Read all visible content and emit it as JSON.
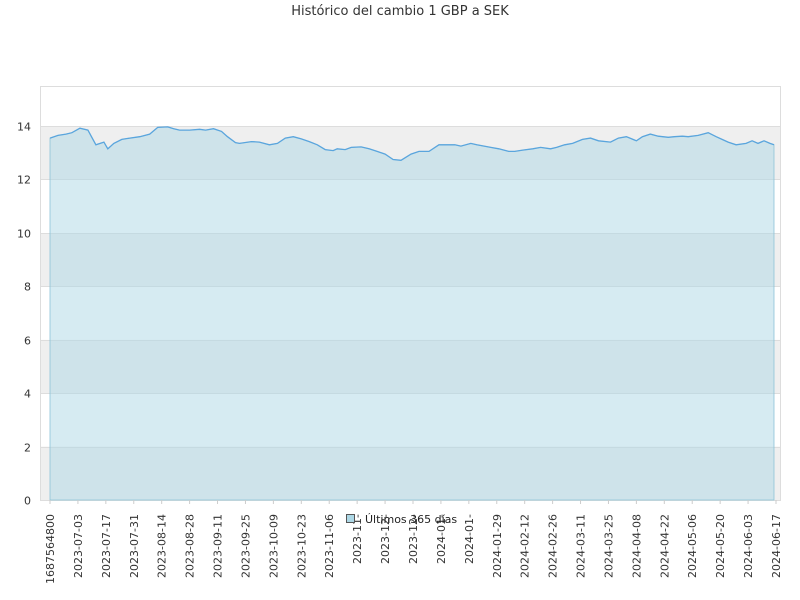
{
  "chart_data": {
    "type": "area",
    "title": "Histórico del cambio 1 GBP a SEK",
    "xlabel": "",
    "ylabel": "",
    "ylim": [
      0,
      15.5
    ],
    "yticks": [
      0,
      2,
      4,
      6,
      8,
      10,
      12,
      14
    ],
    "xtick_labels": [
      "1687564800",
      "2023-07-03",
      "2023-07-17",
      "2023-07-31",
      "2023-08-14",
      "2023-08-28",
      "2023-09-11",
      "2023-09-25",
      "2023-10-09",
      "2023-10-23",
      "2023-11-06",
      "2023-11-",
      "2023-12-",
      "2023-12-",
      "2024-01-",
      "2024-01-",
      "2024-01-29",
      "2024-02-12",
      "2024-02-26",
      "2024-03-11",
      "2024-03-25",
      "2024-04-08",
      "2024-04-22",
      "2024-05-06",
      "2024-05-20",
      "2024-06-03",
      "2024-06-17"
    ],
    "grid": true,
    "legend_position": "bottom-center",
    "series": [
      {
        "name": "Últimos 365 días",
        "color": "#5aa5dd",
        "fill": "#add8e6",
        "dates": [
          "2023-06-24",
          "2023-06-28",
          "2023-07-02",
          "2023-07-05",
          "2023-07-09",
          "2023-07-13",
          "2023-07-17",
          "2023-07-21",
          "2023-07-23",
          "2023-07-26",
          "2023-07-30",
          "2023-08-03",
          "2023-08-08",
          "2023-08-13",
          "2023-08-17",
          "2023-08-22",
          "2023-08-25",
          "2023-08-28",
          "2023-09-02",
          "2023-09-07",
          "2023-09-10",
          "2023-09-14",
          "2023-09-18",
          "2023-09-21",
          "2023-09-25",
          "2023-09-27",
          "2023-10-03",
          "2023-10-07",
          "2023-10-12",
          "2023-10-16",
          "2023-10-20",
          "2023-10-24",
          "2023-10-28",
          "2023-11-01",
          "2023-11-05",
          "2023-11-09",
          "2023-11-13",
          "2023-11-15",
          "2023-11-19",
          "2023-11-22",
          "2023-11-27",
          "2023-12-01",
          "2023-12-05",
          "2023-12-09",
          "2023-12-13",
          "2023-12-17",
          "2023-12-22",
          "2023-12-26",
          "2023-12-31",
          "2024-01-05",
          "2024-01-08",
          "2024-01-13",
          "2024-01-16",
          "2024-01-21",
          "2024-01-24",
          "2024-01-31",
          "2024-02-04",
          "2024-02-09",
          "2024-02-12",
          "2024-02-16",
          "2024-02-21",
          "2024-02-25",
          "2024-03-01",
          "2024-03-04",
          "2024-03-08",
          "2024-03-12",
          "2024-03-17",
          "2024-03-21",
          "2024-03-25",
          "2024-03-31",
          "2024-04-04",
          "2024-04-08",
          "2024-04-13",
          "2024-04-16",
          "2024-04-20",
          "2024-04-24",
          "2024-04-29",
          "2024-05-02",
          "2024-05-06",
          "2024-05-09",
          "2024-05-14",
          "2024-05-19",
          "2024-05-23",
          "2024-05-26",
          "2024-05-29",
          "2024-06-02",
          "2024-06-07",
          "2024-06-10",
          "2024-06-13",
          "2024-06-16",
          "2024-06-19",
          "2024-06-21"
        ],
        "values": [
          13.55,
          13.65,
          13.7,
          13.75,
          13.92,
          13.85,
          13.3,
          13.4,
          13.15,
          13.35,
          13.5,
          13.55,
          13.6,
          13.7,
          13.95,
          13.97,
          13.9,
          13.85,
          13.85,
          13.88,
          13.85,
          13.9,
          13.8,
          13.6,
          13.38,
          13.35,
          13.42,
          13.4,
          13.3,
          13.35,
          13.55,
          13.6,
          13.52,
          13.42,
          13.3,
          13.12,
          13.08,
          13.15,
          13.12,
          13.2,
          13.22,
          13.15,
          13.05,
          12.95,
          12.75,
          12.72,
          12.95,
          13.05,
          13.05,
          13.3,
          13.3,
          13.3,
          13.25,
          13.35,
          13.3,
          13.2,
          13.15,
          13.05,
          13.05,
          13.1,
          13.15,
          13.2,
          13.15,
          13.2,
          13.3,
          13.35,
          13.5,
          13.55,
          13.45,
          13.4,
          13.55,
          13.6,
          13.45,
          13.6,
          13.7,
          13.62,
          13.58,
          13.6,
          13.62,
          13.6,
          13.65,
          13.75,
          13.6,
          13.5,
          13.4,
          13.3,
          13.35,
          13.45,
          13.35,
          13.45,
          13.35,
          13.3
        ]
      }
    ]
  }
}
